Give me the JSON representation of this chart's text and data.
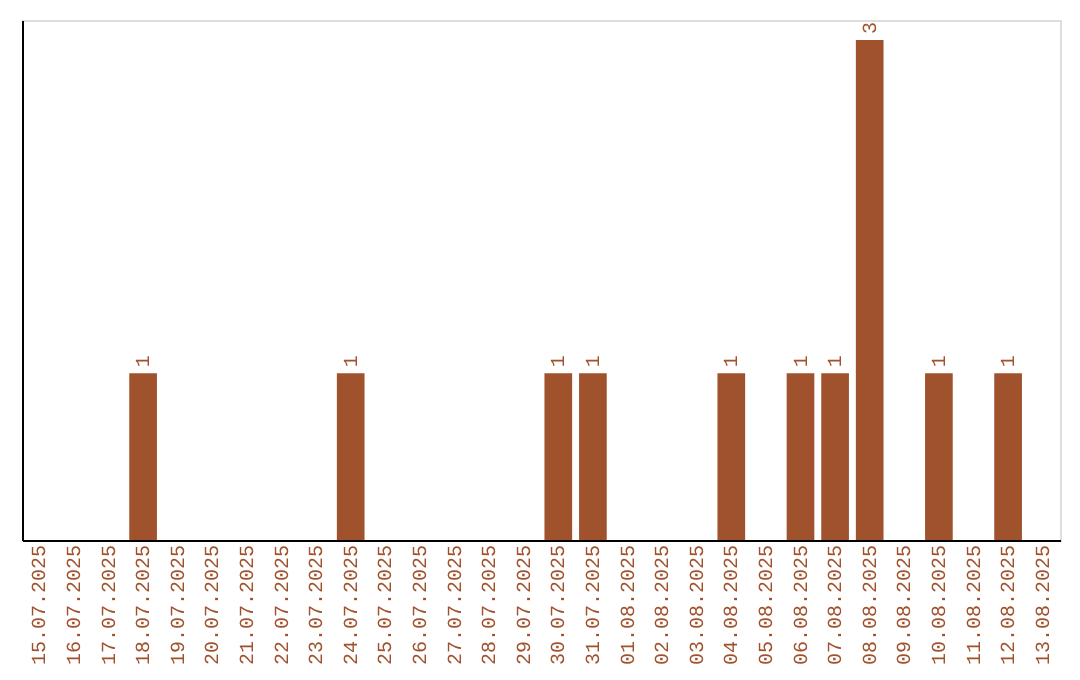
{
  "chart_data": {
    "type": "bar",
    "categories": [
      "15.07.2025",
      "16.07.2025",
      "17.07.2025",
      "18.07.2025",
      "19.07.2025",
      "20.07.2025",
      "21.07.2025",
      "22.07.2025",
      "23.07.2025",
      "24.07.2025",
      "25.07.2025",
      "26.07.2025",
      "27.07.2025",
      "28.07.2025",
      "29.07.2025",
      "30.07.2025",
      "31.07.2025",
      "01.08.2025",
      "02.08.2025",
      "03.08.2025",
      "04.08.2025",
      "05.08.2025",
      "06.08.2025",
      "07.08.2025",
      "08.08.2025",
      "09.08.2025",
      "10.08.2025",
      "11.08.2025",
      "12.08.2025",
      "13.08.2025"
    ],
    "values": [
      0,
      0,
      0,
      1,
      0,
      0,
      0,
      0,
      0,
      1,
      0,
      0,
      0,
      0,
      0,
      1,
      1,
      0,
      0,
      0,
      1,
      0,
      1,
      1,
      3,
      0,
      1,
      0,
      1,
      0
    ],
    "value_labels": [
      null,
      null,
      null,
      "1",
      null,
      null,
      null,
      null,
      null,
      "1",
      null,
      null,
      null,
      null,
      null,
      "1",
      "1",
      null,
      null,
      null,
      "1",
      null,
      "1",
      "1",
      "3",
      null,
      "1",
      null,
      "1",
      null
    ],
    "color": "#a0522d",
    "grid": false,
    "tick_labels": "x"
  }
}
